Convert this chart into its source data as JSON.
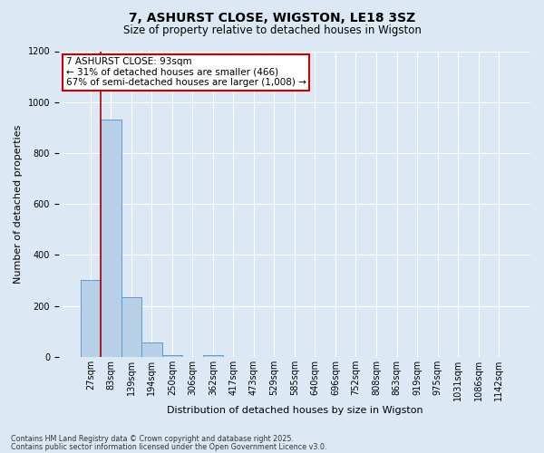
{
  "title": "7, ASHURST CLOSE, WIGSTON, LE18 3SZ",
  "subtitle": "Size of property relative to detached houses in Wigston",
  "xlabel": "Distribution of detached houses by size in Wigston",
  "ylabel": "Number of detached properties",
  "footnote1": "Contains HM Land Registry data © Crown copyright and database right 2025.",
  "footnote2": "Contains public sector information licensed under the Open Government Licence v3.0.",
  "bar_labels": [
    "27sqm",
    "83sqm",
    "139sqm",
    "194sqm",
    "250sqm",
    "306sqm",
    "362sqm",
    "417sqm",
    "473sqm",
    "529sqm",
    "585sqm",
    "640sqm",
    "696sqm",
    "752sqm",
    "808sqm",
    "863sqm",
    "919sqm",
    "975sqm",
    "1031sqm",
    "1086sqm",
    "1142sqm"
  ],
  "bar_values": [
    300,
    930,
    235,
    57,
    5,
    0,
    8,
    0,
    0,
    0,
    0,
    0,
    0,
    0,
    0,
    0,
    0,
    0,
    0,
    0,
    0
  ],
  "bar_color": "#b8cfe8",
  "bar_edge_color": "#5b9bd5",
  "background_color": "#dce9f5",
  "grid_color": "#ffffff",
  "vline_color": "#aa0000",
  "vline_x_index": 1,
  "ylim": [
    0,
    1200
  ],
  "annotation_text": "7 ASHURST CLOSE: 93sqm\n← 31% of detached houses are smaller (466)\n67% of semi-detached houses are larger (1,008) →",
  "annotation_box_facecolor": "#ffffff",
  "annotation_box_edgecolor": "#cc0000",
  "footnote_color": "#333333",
  "title_fontsize": 10,
  "subtitle_fontsize": 8.5,
  "ylabel_fontsize": 8,
  "xlabel_fontsize": 8,
  "tick_fontsize": 7,
  "annot_fontsize": 7.5
}
